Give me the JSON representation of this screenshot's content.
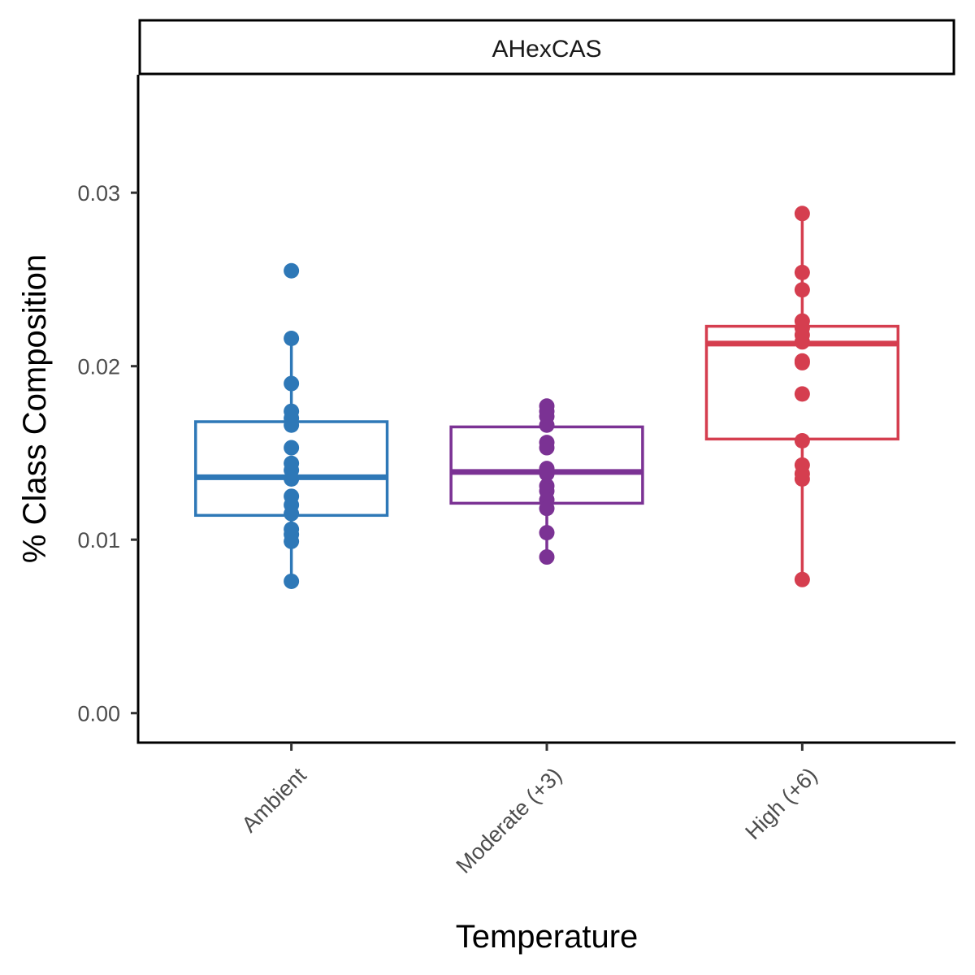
{
  "chart_data": {
    "type": "box",
    "facet_label": "AHexCAS",
    "xlabel": "Temperature",
    "ylabel": "% Class Composition",
    "categories": [
      "Ambient",
      "Moderate (+3)",
      "High (+6)"
    ],
    "colors": [
      "#2e78b7",
      "#7b3294",
      "#d53e4f"
    ],
    "ylim": [
      -0.0017,
      0.0368
    ],
    "yticks": [
      0.0,
      0.01,
      0.02,
      0.03
    ],
    "ytick_labels": [
      "0.00",
      "0.01",
      "0.02",
      "0.03"
    ],
    "grid": false,
    "legend": "none",
    "boxes": [
      {
        "name": "Ambient",
        "min": 0.0076,
        "q1": 0.0114,
        "median": 0.0136,
        "q3": 0.0168,
        "max": 0.0216
      },
      {
        "name": "Moderate (+3)",
        "min": 0.009,
        "q1": 0.0121,
        "median": 0.0139,
        "q3": 0.0165,
        "max": 0.0177
      },
      {
        "name": "High (+6)",
        "min": 0.0077,
        "q1": 0.0158,
        "median": 0.0213,
        "q3": 0.0223,
        "max": 0.0288
      }
    ],
    "points": [
      [
        0.0255,
        0.0216,
        0.019,
        0.0174,
        0.017,
        0.0166,
        0.0153,
        0.0144,
        0.014,
        0.0135,
        0.0125,
        0.012,
        0.0115,
        0.0106,
        0.0103,
        0.0099,
        0.0076
      ],
      [
        0.0177,
        0.0174,
        0.0171,
        0.0166,
        0.0156,
        0.0153,
        0.0141,
        0.0138,
        0.0131,
        0.0128,
        0.0123,
        0.0118,
        0.0104,
        0.009
      ],
      [
        0.0288,
        0.0254,
        0.0244,
        0.0226,
        0.0222,
        0.0218,
        0.0214,
        0.0203,
        0.0202,
        0.0184,
        0.0157,
        0.0143,
        0.0138,
        0.0135,
        0.0077
      ]
    ]
  }
}
